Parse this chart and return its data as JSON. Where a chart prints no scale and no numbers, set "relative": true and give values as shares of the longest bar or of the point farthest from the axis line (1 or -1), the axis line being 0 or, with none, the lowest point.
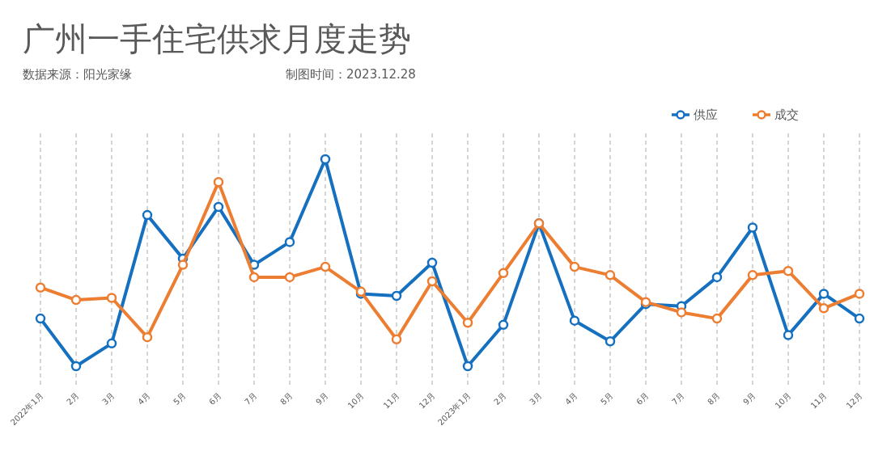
{
  "chart_data": {
    "type": "line",
    "title": "广州一手住宅供求月度走势",
    "annotations": [
      "数据来源：阳光家缘",
      "制图时间：2023.12.28"
    ],
    "categories": [
      "2022年1月",
      "2月",
      "3月",
      "4月",
      "5月",
      "6月",
      "7月",
      "8月",
      "9月",
      "10月",
      "11月",
      "12月",
      "2023年1月",
      "2月",
      "3月",
      "4月",
      "5月",
      "6月",
      "7月",
      "8月",
      "9月",
      "10月",
      "11月",
      "12月"
    ],
    "relative": true,
    "legend": "top right",
    "grid": "x",
    "marker": "circle",
    "line_style": "solid",
    "series": [
      {
        "name": "供应",
        "color": "#1570c0",
        "values": [
          0.23,
          0.0,
          0.11,
          0.73,
          0.52,
          0.77,
          0.49,
          0.6,
          1.0,
          0.35,
          0.34,
          0.5,
          0.0,
          0.2,
          0.69,
          0.22,
          0.12,
          0.3,
          0.29,
          0.43,
          0.67,
          0.15,
          0.35,
          0.23
        ]
      },
      {
        "name": "成交",
        "color": "#ed7d31",
        "values": [
          0.38,
          0.32,
          0.33,
          0.14,
          0.49,
          0.89,
          0.43,
          0.43,
          0.48,
          0.36,
          0.13,
          0.41,
          0.21,
          0.45,
          0.69,
          0.48,
          0.44,
          0.31,
          0.26,
          0.23,
          0.44,
          0.46,
          0.28,
          0.35
        ]
      }
    ]
  }
}
